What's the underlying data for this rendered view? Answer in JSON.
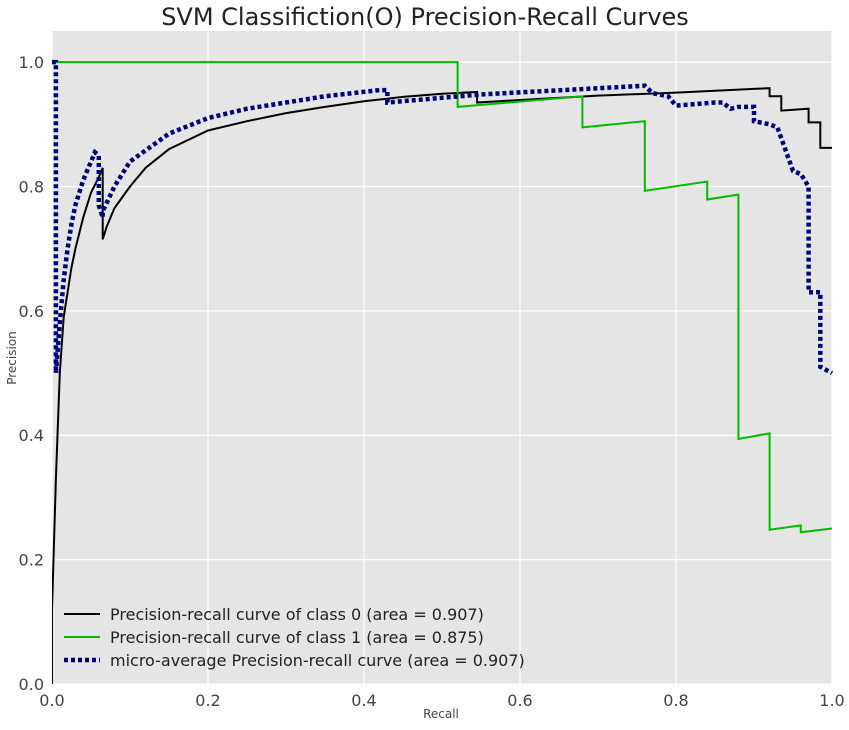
{
  "chart_data": {
    "type": "line",
    "title": "SVM Classifiction(O) Precision-Recall Curves",
    "xlabel": "Recall",
    "ylabel": "Precision",
    "xlim": [
      0,
      1
    ],
    "ylim": [
      0,
      1.05
    ],
    "xticks": [
      0.0,
      0.2,
      0.4,
      0.6,
      0.8,
      1.0
    ],
    "xtick_labels": [
      "0.0",
      "0.2",
      "0.4",
      "0.6",
      "0.8",
      "1.0"
    ],
    "yticks": [
      0.0,
      0.2,
      0.4,
      0.6,
      0.8,
      1.0
    ],
    "ytick_labels": [
      "0.0",
      "0.2",
      "0.4",
      "0.6",
      "0.8",
      "1.0"
    ],
    "grid": true,
    "background_color": "#e5e5e5",
    "legend_position": "lower-left",
    "series": [
      {
        "name": "Precision-recall curve of class 0 (area = 0.907)",
        "color": "#000000",
        "style": "solid",
        "x": [
          0.0,
          0.0,
          0.005,
          0.01,
          0.015,
          0.02,
          0.025,
          0.03,
          0.04,
          0.05,
          0.06,
          0.065,
          0.065,
          0.07,
          0.08,
          0.1,
          0.12,
          0.15,
          0.2,
          0.25,
          0.3,
          0.35,
          0.4,
          0.45,
          0.5,
          0.545,
          0.545,
          0.6,
          0.7,
          0.8,
          0.9,
          0.92,
          0.92,
          0.935,
          0.935,
          0.97,
          0.97,
          0.985,
          0.985,
          1.0
        ],
        "y": [
          0.0,
          0.12,
          0.33,
          0.5,
          0.59,
          0.63,
          0.67,
          0.7,
          0.75,
          0.79,
          0.815,
          0.83,
          0.715,
          0.735,
          0.765,
          0.8,
          0.83,
          0.86,
          0.89,
          0.905,
          0.918,
          0.928,
          0.937,
          0.944,
          0.949,
          0.952,
          0.935,
          0.939,
          0.946,
          0.951,
          0.957,
          0.958,
          0.945,
          0.945,
          0.922,
          0.925,
          0.903,
          0.903,
          0.862,
          0.862
        ]
      },
      {
        "name": "Precision-recall curve of class 1 (area = 0.875)",
        "color": "#00bb00",
        "style": "solid",
        "x": [
          0.0,
          0.52,
          0.52,
          0.68,
          0.68,
          0.76,
          0.76,
          0.84,
          0.84,
          0.88,
          0.88,
          0.92,
          0.92,
          0.96,
          0.96,
          1.0
        ],
        "y": [
          1.0,
          1.0,
          0.928,
          0.945,
          0.895,
          0.905,
          0.793,
          0.808,
          0.779,
          0.787,
          0.394,
          0.403,
          0.248,
          0.255,
          0.244,
          0.25
        ]
      },
      {
        "name": "micro-average Precision-recall curve (area = 0.907)",
        "color": "#00007f",
        "style": "dotted",
        "x": [
          0.0,
          0.005,
          0.005,
          0.01,
          0.015,
          0.02,
          0.025,
          0.03,
          0.04,
          0.05,
          0.055,
          0.06,
          0.06,
          0.065,
          0.065,
          0.08,
          0.1,
          0.15,
          0.2,
          0.25,
          0.3,
          0.35,
          0.42,
          0.43,
          0.43,
          0.55,
          0.7,
          0.76,
          0.77,
          0.79,
          0.8,
          0.8,
          0.85,
          0.86,
          0.87,
          0.88,
          0.9,
          0.9,
          0.92,
          0.93,
          0.94,
          0.95,
          0.96,
          0.97,
          0.97,
          0.985,
          0.985,
          1.0
        ],
        "y": [
          1.0,
          1.0,
          0.5,
          0.58,
          0.65,
          0.7,
          0.74,
          0.77,
          0.81,
          0.84,
          0.855,
          0.85,
          0.77,
          0.75,
          0.76,
          0.8,
          0.84,
          0.885,
          0.91,
          0.925,
          0.935,
          0.945,
          0.955,
          0.955,
          0.935,
          0.948,
          0.958,
          0.962,
          0.95,
          0.945,
          0.93,
          0.93,
          0.935,
          0.935,
          0.925,
          0.928,
          0.928,
          0.905,
          0.9,
          0.895,
          0.86,
          0.825,
          0.82,
          0.8,
          0.63,
          0.63,
          0.51,
          0.5
        ]
      }
    ]
  }
}
